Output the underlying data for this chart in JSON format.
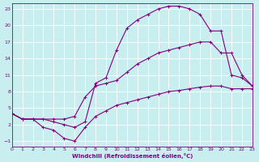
{
  "xlabel": "Windchill (Refroidissement éolien,°C)",
  "bg_color": "#c8eef0",
  "line_color": "#800080",
  "grid_color": "#ffffff",
  "xlim": [
    0,
    23
  ],
  "ylim": [
    -2,
    24
  ],
  "xticks": [
    0,
    1,
    2,
    3,
    4,
    5,
    6,
    7,
    8,
    9,
    10,
    11,
    12,
    13,
    14,
    15,
    16,
    17,
    18,
    19,
    20,
    21,
    22,
    23
  ],
  "yticks": [
    -1,
    2,
    5,
    8,
    11,
    14,
    17,
    20,
    23
  ],
  "line1_x": [
    0,
    1,
    2,
    3,
    4,
    5,
    6,
    7,
    8,
    9,
    10,
    11,
    12,
    13,
    14,
    15,
    16,
    17,
    18,
    19,
    20,
    21,
    22,
    23
  ],
  "line1_y": [
    4,
    3,
    3,
    3,
    2.5,
    2.0,
    1.5,
    2.5,
    9.5,
    10.5,
    15.5,
    19.5,
    21,
    22,
    23,
    23.5,
    23.5,
    23,
    22,
    19,
    19,
    11,
    10.5,
    9
  ],
  "line2_x": [
    0,
    1,
    2,
    4,
    5,
    6,
    7,
    8,
    9,
    10,
    11,
    12,
    13,
    14,
    15,
    16,
    17,
    18,
    19,
    20,
    21,
    22,
    23
  ],
  "line2_y": [
    4,
    3,
    3,
    3,
    3,
    3.5,
    7,
    9,
    9.5,
    10,
    11.5,
    13,
    14,
    15,
    15.5,
    16,
    16.5,
    17,
    17,
    15,
    15,
    11,
    9
  ],
  "line3_x": [
    0,
    1,
    2,
    3,
    4,
    5,
    6,
    7,
    8,
    9,
    10,
    11,
    12,
    13,
    14,
    15,
    16,
    17,
    18,
    19,
    20,
    21,
    22,
    23
  ],
  "line3_y": [
    4,
    3,
    3,
    1.5,
    1,
    -0.5,
    -1.0,
    1.5,
    3.5,
    4.5,
    5.5,
    6,
    6.5,
    7,
    7.5,
    8,
    8.2,
    8.5,
    8.8,
    9,
    9,
    8.5,
    8.5,
    8.5
  ]
}
